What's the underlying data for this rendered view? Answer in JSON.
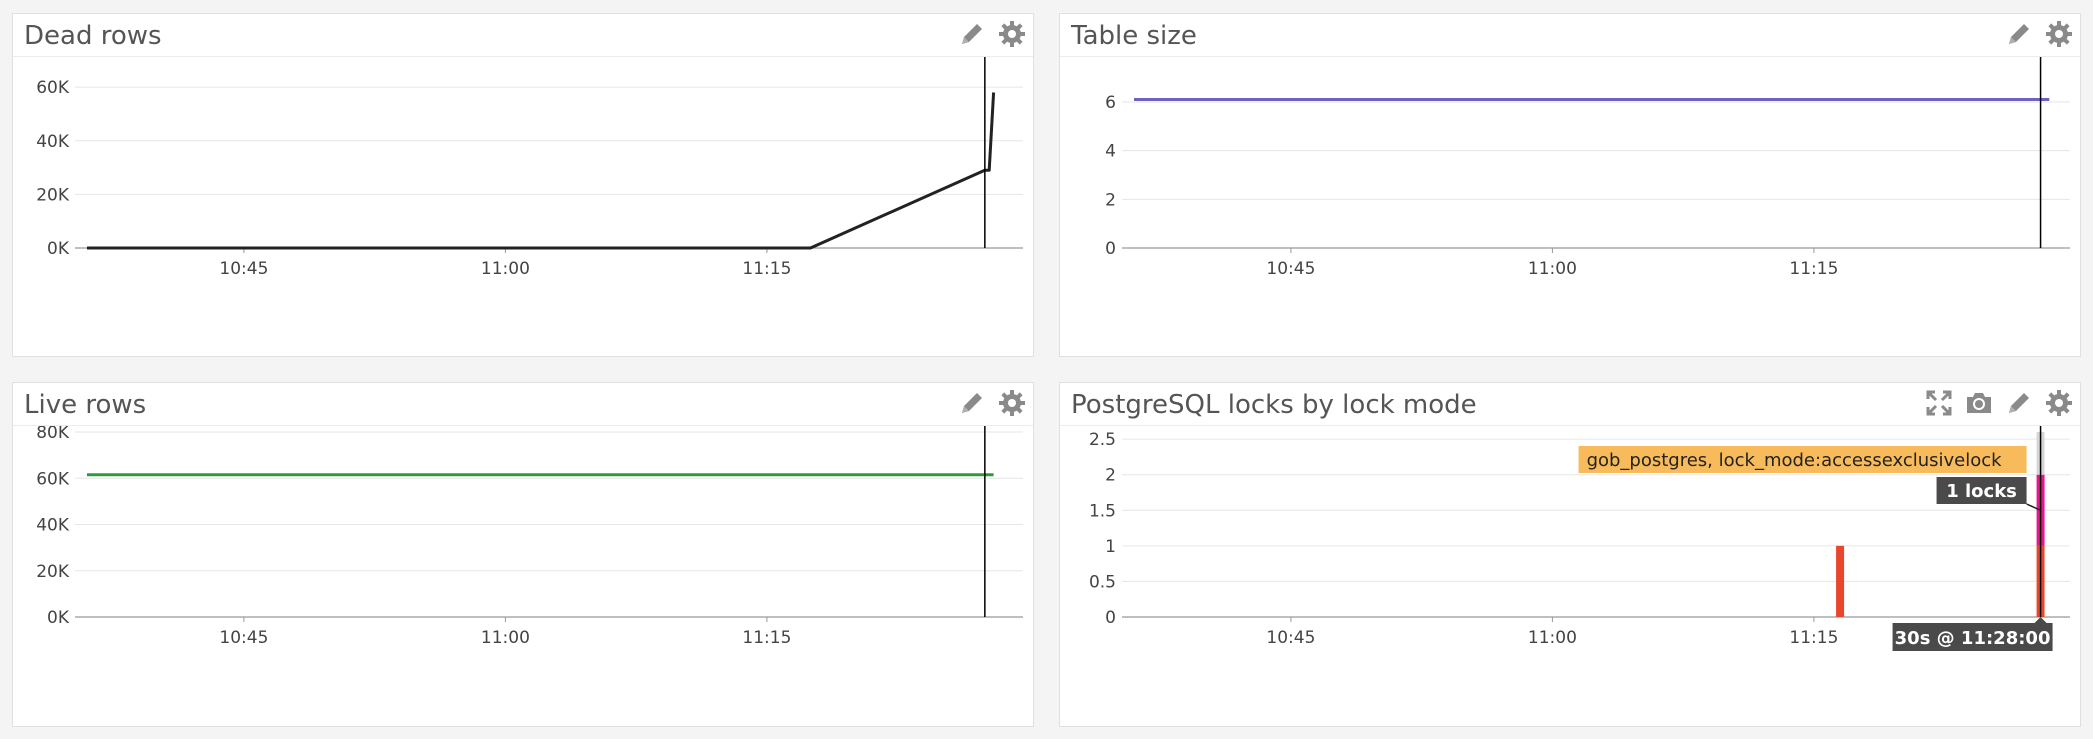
{
  "colors": {
    "dead_rows_line": "#222222",
    "table_size_line": "#6f61c4",
    "live_rows_line": "#2e9a3f",
    "lock_red": "#e8462d",
    "lock_magenta": "#e8168c",
    "lock_gray": "#d6d6d6",
    "cursor": "#000000",
    "tooltip_bg": "#f8bb5c",
    "tooltip_dark": "#4a4a4a"
  },
  "panels": {
    "dead_rows": {
      "title": "Dead rows",
      "tools": [
        "pencil-icon",
        "gear-icon"
      ]
    },
    "table_size": {
      "title": "Table size",
      "tools": [
        "pencil-icon",
        "gear-icon"
      ]
    },
    "live_rows": {
      "title": "Live rows",
      "tools": [
        "pencil-icon",
        "gear-icon"
      ]
    },
    "locks": {
      "title": "PostgreSQL locks by lock mode",
      "tools": [
        "expand-icon",
        "camera-icon",
        "pencil-icon",
        "gear-icon"
      ]
    }
  },
  "chart_data": [
    {
      "id": "dead_rows",
      "type": "line",
      "title": "Dead rows",
      "x_domain": [
        "10:36",
        "11:29"
      ],
      "x_ticks": [
        "10:45",
        "11:00",
        "11:15"
      ],
      "y_ticks": [
        "0K",
        "20K",
        "40K",
        "60K"
      ],
      "y_tick_values": [
        0,
        20000,
        40000,
        60000
      ],
      "ylim": [
        0,
        69000
      ],
      "cursor_x": "11:27:30",
      "series": [
        {
          "color": "#222222",
          "x": [
            "10:36",
            "11:17:30",
            "11:27:30",
            "11:27:45",
            "11:28:00"
          ],
          "values": [
            0,
            0,
            29000,
            29000,
            58000
          ]
        }
      ]
    },
    {
      "id": "table_size",
      "type": "line",
      "title": "Table size",
      "x_domain": [
        "10:36",
        "11:29"
      ],
      "x_ticks": [
        "10:45",
        "11:00",
        "11:15"
      ],
      "y_ticks": [
        "0",
        "2",
        "4",
        "6"
      ],
      "y_tick_values": [
        0,
        2,
        4,
        6
      ],
      "ylim": [
        0,
        7.6
      ],
      "cursor_x": "11:28:00",
      "series": [
        {
          "color": "#6f61c4",
          "x": [
            "10:36",
            "11:28:30"
          ],
          "values": [
            6.1,
            6.1
          ]
        }
      ]
    },
    {
      "id": "live_rows",
      "type": "line",
      "title": "Live rows",
      "x_domain": [
        "10:36",
        "11:29"
      ],
      "x_ticks": [
        "10:45",
        "11:00",
        "11:15"
      ],
      "y_ticks": [
        "0K",
        "20K",
        "40K",
        "60K",
        "80K"
      ],
      "y_tick_values": [
        0,
        20000,
        40000,
        60000,
        80000
      ],
      "ylim": [
        0,
        80000
      ],
      "cursor_x": "11:27:30",
      "series": [
        {
          "color": "#2e9a3f",
          "x": [
            "10:36",
            "11:28:00"
          ],
          "values": [
            61500,
            61500
          ]
        }
      ]
    },
    {
      "id": "locks",
      "type": "bar",
      "title": "PostgreSQL locks by lock mode",
      "x_domain": [
        "10:36",
        "11:29"
      ],
      "x_ticks": [
        "10:45",
        "11:00",
        "11:15"
      ],
      "y_ticks": [
        "0",
        "0.5",
        "1",
        "1.5",
        "2",
        "2.5"
      ],
      "y_tick_values": [
        0,
        0.5,
        1,
        1.5,
        2,
        2.5
      ],
      "ylim": [
        0,
        2.6
      ],
      "cursor_x": "11:28:00",
      "bars": [
        {
          "x": "11:16:30",
          "segments": [
            {
              "value": 1,
              "color": "#e8462d"
            }
          ]
        },
        {
          "x": "11:28:00",
          "segments": [
            {
              "value": 1,
              "color": "#e8462d"
            },
            {
              "value": 1,
              "color": "#e8168c"
            },
            {
              "value": 0.6,
              "color": "#d6d6d6"
            }
          ]
        }
      ],
      "tooltip": {
        "series": "gob_postgres, lock_mode:accessexclusivelock",
        "value": "1 locks",
        "time": "30s @ 11:28:00"
      }
    }
  ]
}
